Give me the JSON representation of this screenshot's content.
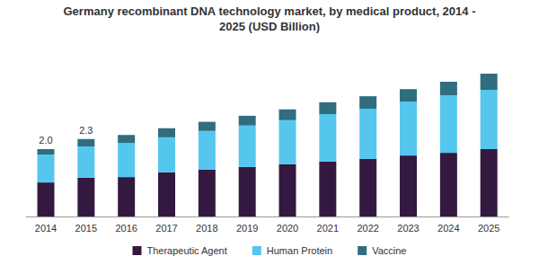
{
  "chart_data": {
    "type": "bar",
    "title": "Germany recombinant DNA technology market, by medical product, 2014 - 2025 (USD Billion)",
    "categories": [
      "2014",
      "2015",
      "2016",
      "2017",
      "2018",
      "2019",
      "2020",
      "2021",
      "2022",
      "2023",
      "2024",
      "2025"
    ],
    "series": [
      {
        "name": "Therapeutic Agent",
        "color": "#33193f",
        "values": [
          1.01,
          1.15,
          1.17,
          1.31,
          1.39,
          1.47,
          1.55,
          1.63,
          1.71,
          1.81,
          1.89,
          2.0
        ]
      },
      {
        "name": "Human Protein",
        "color": "#55c7ef",
        "values": [
          0.83,
          0.93,
          1.01,
          1.04,
          1.15,
          1.23,
          1.31,
          1.41,
          1.49,
          1.6,
          1.71,
          1.76
        ]
      },
      {
        "name": "Vaccine",
        "color": "#2f6d7f",
        "values": [
          0.16,
          0.22,
          0.24,
          0.27,
          0.27,
          0.29,
          0.32,
          0.35,
          0.37,
          0.37,
          0.4,
          0.48
        ]
      }
    ],
    "annotations": [
      {
        "category": "2014",
        "value": 2.0,
        "label": "2.0"
      },
      {
        "category": "2015",
        "value": 2.3,
        "label": "2.3"
      }
    ],
    "ylim": [
      0,
      5
    ],
    "stacked": true,
    "tick_labels": "x",
    "grid": false,
    "legend": "bottom"
  }
}
